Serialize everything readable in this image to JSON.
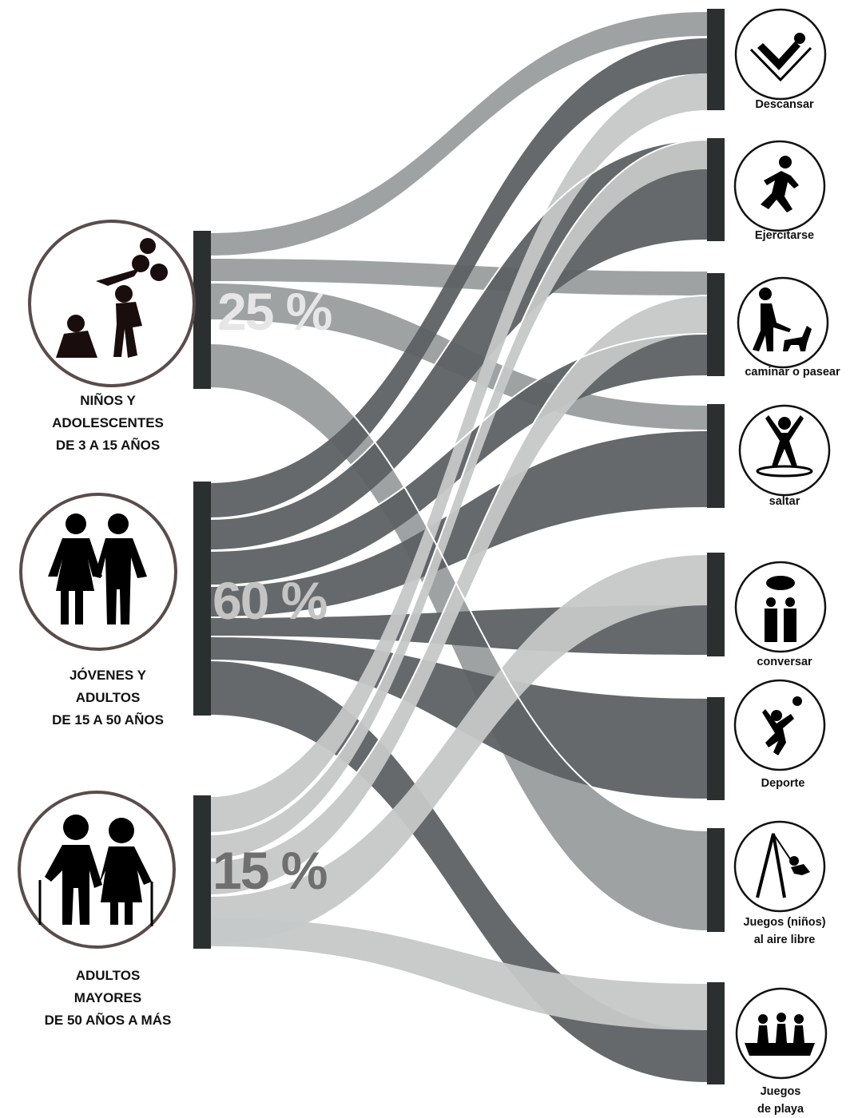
{
  "groups": [
    {
      "label": "NIÑOS Y\nADOLESCENTES\nDE 3 A 15 AÑOS",
      "percent": "25 %",
      "percent_color": "#e6e6e6"
    },
    {
      "label": "JÓVENES Y\nADULTOS\nDE 15 A 50 AÑOS",
      "percent": "60 %",
      "percent_color": "#c4c4c4"
    },
    {
      "label": "ADULTOS\nMAYORES\nDE 50 AÑOS A MÁS",
      "percent": "15 %",
      "percent_color": "#6f6f6f"
    }
  ],
  "activities": [
    {
      "label": "Descansar",
      "icon": "reclining-person-icon"
    },
    {
      "label": "Ejercitarse",
      "icon": "running-person-icon"
    },
    {
      "label": "caminar o pasear",
      "icon": "dog-walking-icon"
    },
    {
      "label": "saltar",
      "icon": "jumping-person-icon"
    },
    {
      "label": "conversar",
      "icon": "conversation-icon"
    },
    {
      "label": "Deporte",
      "icon": "volleyball-player-icon"
    },
    {
      "label": "Juegos (niños)\nal aire libre",
      "icon": "swing-icon"
    },
    {
      "label": "Juegos\nde playa",
      "icon": "beach-boat-icon"
    }
  ],
  "colors": {
    "children_flow": "#9a9d9e",
    "adult_flow": "#5d6163",
    "senior_flow": "#c6c8c8",
    "bar": "#2c2f30",
    "circle_border": "#5a4c4c"
  }
}
